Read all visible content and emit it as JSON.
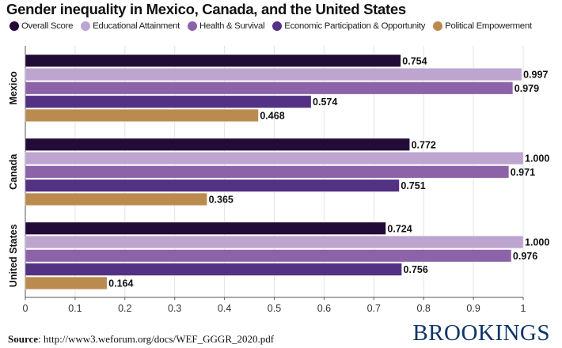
{
  "chart_data": {
    "type": "bar",
    "orientation": "horizontal",
    "title": "Gender inequality in Mexico, Canada, and the United States",
    "xlabel": "",
    "ylabel": "",
    "xlim": [
      0,
      1
    ],
    "grid": true,
    "legend_position": "top",
    "categories": [
      "Mexico",
      "Canada",
      "United States"
    ],
    "x_ticks": [
      "0",
      "0.1",
      "0.2",
      "0.3",
      "0.4",
      "0.5",
      "0.6",
      "0.7",
      "0.8",
      "0.9",
      "1"
    ],
    "series": [
      {
        "name": "Overall Score",
        "color": "#230b37",
        "values": [
          0.754,
          0.772,
          0.724
        ],
        "labels": [
          "0.754",
          "0.772",
          "0.724"
        ]
      },
      {
        "name": "Educational Attainment",
        "color": "#bda5d0",
        "values": [
          0.997,
          1.0,
          1.0
        ],
        "labels": [
          "0.997",
          "1.000",
          "1.000"
        ]
      },
      {
        "name": "Health & Survival",
        "color": "#8c62a8",
        "values": [
          0.979,
          0.971,
          0.976
        ],
        "labels": [
          "0.979",
          "0.971",
          "0.976"
        ]
      },
      {
        "name": "Economic Participation & Opportunity",
        "color": "#533183",
        "values": [
          0.574,
          0.751,
          0.756
        ],
        "labels": [
          "0.574",
          "0.751",
          "0.756"
        ]
      },
      {
        "name": "Political Empowerment",
        "color": "#bb8a4e",
        "values": [
          0.468,
          0.365,
          0.164
        ],
        "labels": [
          "0.468",
          "0.365",
          "0.164"
        ]
      }
    ]
  },
  "footer": {
    "source_label": "Source",
    "source_text": ": http://www3.weforum.org/docs/WEF_GGGR_2020.pdf",
    "brand": "BROOKINGS"
  }
}
